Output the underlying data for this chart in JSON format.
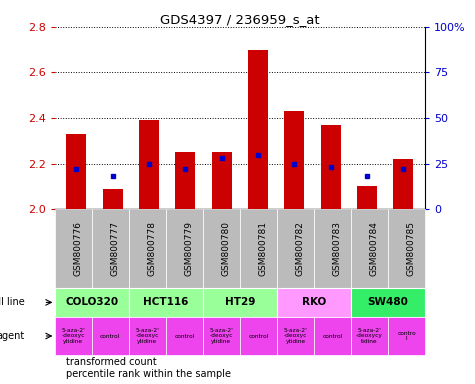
{
  "title": "GDS4397 / 236959_s_at",
  "samples": [
    "GSM800776",
    "GSM800777",
    "GSM800778",
    "GSM800779",
    "GSM800780",
    "GSM800781",
    "GSM800782",
    "GSM800783",
    "GSM800784",
    "GSM800785"
  ],
  "transformed_counts": [
    2.33,
    2.09,
    2.39,
    2.25,
    2.25,
    2.7,
    2.43,
    2.37,
    2.1,
    2.22
  ],
  "percentile_ranks": [
    22,
    18,
    25,
    22,
    28,
    30,
    25,
    23,
    18,
    22
  ],
  "y_min": 2.0,
  "y_max": 2.8,
  "y_ticks": [
    2.0,
    2.2,
    2.4,
    2.6,
    2.8
  ],
  "y2_ticks": [
    0,
    25,
    50,
    75,
    100
  ],
  "y2_labels": [
    "0",
    "25",
    "50",
    "75",
    "100%"
  ],
  "cell_lines": [
    {
      "name": "COLO320",
      "start": 0,
      "end": 2,
      "color": "#99ff99"
    },
    {
      "name": "HCT116",
      "start": 2,
      "end": 4,
      "color": "#99ff99"
    },
    {
      "name": "HT29",
      "start": 4,
      "end": 6,
      "color": "#99ff99"
    },
    {
      "name": "RKO",
      "start": 6,
      "end": 8,
      "color": "#ff99ff"
    },
    {
      "name": "SW480",
      "start": 8,
      "end": 10,
      "color": "#33ee66"
    }
  ],
  "agents": [
    {
      "label": "5-aza-2'\n-deoxyc\nytidine",
      "type": "drug"
    },
    {
      "label": "control",
      "type": "control"
    },
    {
      "label": "5-aza-2'\n-deoxyc\nytidine",
      "type": "drug"
    },
    {
      "label": "control",
      "type": "control"
    },
    {
      "label": "5-aza-2'\n-deoxyc\nytidine",
      "type": "drug"
    },
    {
      "label": "control",
      "type": "control"
    },
    {
      "label": "5-aza-2'\n-deoxyc\nytidine",
      "type": "drug"
    },
    {
      "label": "control",
      "type": "control"
    },
    {
      "label": "5-aza-2'\n-deoxycy\ntidine",
      "type": "drug"
    },
    {
      "label": "contro\nl",
      "type": "control"
    }
  ],
  "bar_color": "#cc0000",
  "dot_color": "#0000cc",
  "sample_bg_color": "#bbbbbb",
  "agent_color": "#ee44ee",
  "legend_items": [
    {
      "label": "transformed count",
      "color": "#cc0000"
    },
    {
      "label": "percentile rank within the sample",
      "color": "#0000cc"
    }
  ]
}
